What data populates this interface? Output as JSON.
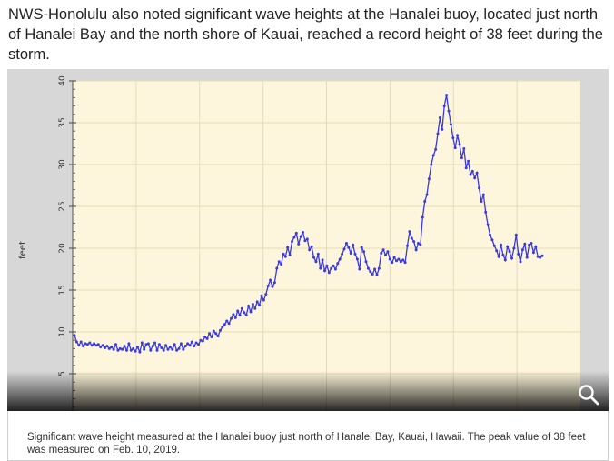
{
  "article": {
    "paragraph": "NWS-Honolulu also noted significant wave heights at the Hanalei buoy, located just north of Hanalei Bay and the north shore of Kauai, reached a record height of 38 feet during the storm."
  },
  "figure": {
    "caption": "Significant wave height measured at the Hanalei buoy just north of Hanalei Bay, Kauai, Hawaii. The peak value of 38 feet was measured on Feb. 10, 2019.",
    "zoom_icon": "magnifier-icon"
  },
  "colors": {
    "plot_background": "#fdf6dc",
    "line": "#3a3ae0",
    "grid": "#e6dcb4",
    "frame": "#d7d7d7"
  },
  "chart_data": {
    "type": "line",
    "title": "",
    "xlabel": "",
    "ylabel": "feet",
    "ylim": [
      0,
      40
    ],
    "yticks": [
      5,
      10,
      15,
      20,
      25,
      30,
      35,
      40
    ],
    "grid": true,
    "legend": "none",
    "series": [
      {
        "values": [
          9.6,
          8.8,
          8.4,
          8.8,
          8.3,
          8.6,
          8.5,
          8.7,
          8.4,
          8.6,
          8.4,
          8.5,
          8.2,
          8.4,
          8.1,
          8.3,
          8.0,
          8.2,
          7.9,
          8.5,
          7.8,
          8.0,
          7.9,
          8.3,
          7.8,
          8.6,
          7.8,
          8.0,
          7.7,
          8.2,
          7.6,
          8.7,
          7.9,
          8.5,
          8.6,
          7.8,
          8.3,
          8.7,
          7.8,
          8.5,
          8.1,
          7.8,
          8.4,
          7.9,
          8.2,
          7.9,
          8.5,
          7.8,
          8.0,
          8.6,
          7.9,
          8.3,
          8.6,
          8.4,
          8.8,
          8.3,
          8.7,
          8.5,
          9.0,
          8.9,
          9.4,
          9.2,
          9.8,
          9.4,
          10.1,
          9.8,
          9.5,
          10.2,
          10.6,
          10.9,
          11.3,
          11.0,
          11.6,
          12.1,
          11.7,
          12.5,
          12.0,
          12.8,
          12.3,
          12.0,
          13.1,
          12.4,
          13.3,
          12.8,
          13.6,
          13.2,
          14.3,
          13.8,
          14.5,
          15.5,
          16.2,
          15.4,
          15.9,
          17.6,
          18.4,
          18.1,
          19.3,
          19.0,
          20.1,
          19.2,
          20.8,
          21.3,
          21.8,
          20.5,
          21.4,
          21.9,
          20.9,
          21.1,
          19.8,
          20.2,
          18.9,
          18.4,
          19.3,
          17.6,
          18.6,
          17.3,
          17.9,
          17.1,
          17.6,
          17.9,
          17.5,
          18.2,
          18.7,
          19.3,
          19.9,
          20.6,
          20.1,
          19.4,
          20.4,
          19.3,
          18.7,
          17.5,
          20.1,
          19.6,
          18.4,
          17.6,
          17.2,
          16.9,
          17.5,
          16.8,
          17.6,
          19.4,
          19.8,
          19.2,
          19.6,
          18.7,
          18.3,
          18.9,
          18.5,
          18.7,
          18.4,
          18.6,
          18.3,
          20.3,
          22.0,
          21.2,
          20.8,
          19.8,
          20.6,
          20.4,
          23.7,
          25.6,
          26.4,
          28.3,
          30.0,
          31.1,
          31.8,
          33.7,
          35.6,
          34.2,
          37.0,
          38.3,
          36.4,
          34.8,
          33.2,
          32.0,
          33.5,
          32.4,
          30.8,
          31.9,
          29.6,
          30.4,
          28.8,
          29.2,
          28.4,
          29.0,
          27.2,
          25.6,
          26.4,
          24.3,
          22.8,
          21.6,
          21.0,
          20.3,
          19.7,
          19.0,
          20.4,
          19.2,
          18.6,
          20.2,
          19.6,
          18.8,
          20.0,
          21.6,
          19.3,
          18.4,
          19.8,
          20.5,
          18.9,
          20.4,
          20.6,
          19.5,
          20.2,
          19.0,
          18.9,
          19.1
        ]
      }
    ]
  }
}
